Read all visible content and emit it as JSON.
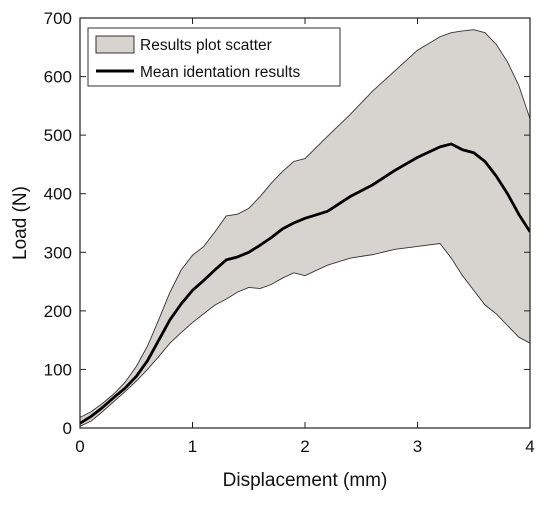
{
  "chart_data": {
    "type": "area",
    "xlabel": "Displacement (mm)",
    "ylabel": "Load (N)",
    "xlim": [
      0,
      4
    ],
    "ylim": [
      0,
      700
    ],
    "x_ticks": [
      0,
      1,
      2,
      3,
      4
    ],
    "y_ticks": [
      0,
      100,
      200,
      300,
      400,
      500,
      600,
      700
    ],
    "x_tick_labels": [
      "0",
      "1",
      "2",
      "3",
      "4"
    ],
    "y_tick_labels": [
      "0",
      "100",
      "200",
      "300",
      "400",
      "500",
      "600",
      "700"
    ],
    "grid": false,
    "legend_position": "top-left",
    "colors": {
      "band_fill": "#d7d3ce",
      "band_edge": "#333333",
      "mean_line": "#000000"
    },
    "series": [
      {
        "name": "Results plot scatter",
        "kind": "band",
        "x": [
          0,
          0.1,
          0.2,
          0.3,
          0.4,
          0.5,
          0.6,
          0.7,
          0.8,
          0.9,
          1.0,
          1.1,
          1.2,
          1.3,
          1.4,
          1.5,
          1.6,
          1.7,
          1.8,
          1.9,
          2.0,
          2.2,
          2.4,
          2.6,
          2.8,
          3.0,
          3.2,
          3.3,
          3.4,
          3.5,
          3.6,
          3.7,
          3.8,
          3.9,
          4.0
        ],
        "upper": [
          18,
          28,
          42,
          58,
          78,
          105,
          140,
          185,
          232,
          270,
          295,
          310,
          335,
          362,
          365,
          375,
          395,
          418,
          438,
          455,
          460,
          498,
          535,
          575,
          610,
          645,
          668,
          675,
          678,
          680,
          675,
          655,
          625,
          585,
          528
        ],
        "lower": [
          3,
          12,
          28,
          45,
          62,
          80,
          100,
          122,
          145,
          163,
          180,
          195,
          210,
          220,
          232,
          240,
          238,
          245,
          256,
          265,
          260,
          278,
          290,
          296,
          305,
          310,
          315,
          290,
          260,
          235,
          210,
          195,
          175,
          155,
          145
        ]
      },
      {
        "name": "Mean identation results",
        "kind": "line",
        "x": [
          0,
          0.1,
          0.2,
          0.3,
          0.4,
          0.5,
          0.6,
          0.7,
          0.8,
          0.9,
          1.0,
          1.1,
          1.2,
          1.3,
          1.4,
          1.5,
          1.6,
          1.7,
          1.8,
          1.9,
          2.0,
          2.2,
          2.4,
          2.6,
          2.8,
          3.0,
          3.2,
          3.3,
          3.4,
          3.5,
          3.6,
          3.7,
          3.8,
          3.9,
          4.0
        ],
        "values": [
          8,
          20,
          35,
          52,
          68,
          88,
          115,
          150,
          185,
          212,
          235,
          252,
          270,
          287,
          292,
          300,
          312,
          325,
          340,
          350,
          358,
          370,
          395,
          415,
          440,
          462,
          480,
          485,
          475,
          470,
          455,
          430,
          400,
          365,
          335
        ]
      }
    ]
  }
}
